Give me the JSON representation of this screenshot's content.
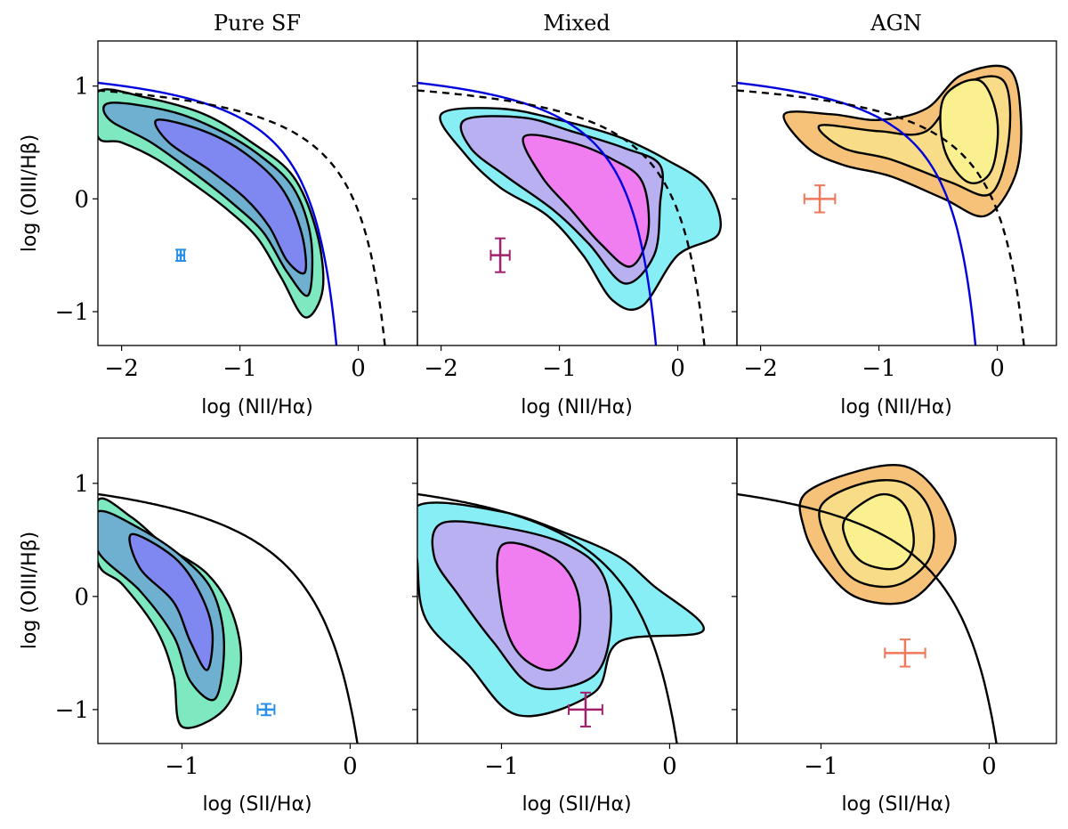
{
  "column_titles": [
    "Pure SF",
    "Mixed",
    "AGN"
  ],
  "ylabel": "log (OIII/Hβ)",
  "xlabel_top": "log (NII/Hα)",
  "xlabel_bottom": "log (SII/Hα)",
  "colors": {
    "sf_outer": "#7ee8c0",
    "sf_mid": "#6fb0d0",
    "sf_inner": "#7e88f0",
    "mix_outer": "#88eef6",
    "mix_mid": "#b8b0f0",
    "mix_inner": "#f07ef0",
    "agn_outer": "#f6c27a",
    "agn_mid": "#f8dc88",
    "agn_inner": "#fbf090",
    "kauffmann": "#0000dd",
    "kewley": "#000000",
    "err_sf": "#2a8fe8",
    "err_mix": "#a0206a",
    "err_agn": "#f0785a"
  },
  "chart_data": [
    {
      "type": "scatter",
      "panel": "top-left",
      "title": "Pure SF",
      "xlabel": "log (NII/Hα)",
      "ylabel": "log (OIII/Hβ)",
      "xlim": [
        -2.2,
        0.5
      ],
      "ylim": [
        -1.3,
        1.4
      ],
      "xticks": [
        -2,
        -1,
        0
      ],
      "xtick_labels": [
        "−2",
        "−1",
        "0"
      ],
      "yticks": [
        -1,
        0,
        1
      ],
      "ytick_labels": [
        "−1",
        "0",
        "1"
      ],
      "errorbar": {
        "x": -1.5,
        "y": -0.5,
        "xerr": 0.03,
        "yerr": 0.05,
        "color": "err_sf"
      },
      "palette": "sf",
      "density_ridge": [
        [
          -2.2,
          0.85
        ],
        [
          -1.6,
          0.6
        ],
        [
          -1.1,
          0.35
        ],
        [
          -0.75,
          0.05
        ],
        [
          -0.55,
          -0.4
        ],
        [
          -0.45,
          -0.8
        ]
      ],
      "lines": [
        "kauffmann03",
        "kewley01"
      ]
    },
    {
      "type": "scatter",
      "panel": "top-middle",
      "title": "Mixed",
      "xlabel": "log (NII/Hα)",
      "ylabel": "",
      "xlim": [
        -2.2,
        0.5
      ],
      "ylim": [
        -1.3,
        1.4
      ],
      "xticks": [
        -2,
        -1,
        0
      ],
      "xtick_labels": [
        "−2",
        "−1",
        "0"
      ],
      "yticks": [
        -1,
        0,
        1
      ],
      "ytick_labels": [],
      "errorbar": {
        "x": -1.5,
        "y": -0.5,
        "xerr": 0.08,
        "yerr": 0.15,
        "color": "err_mix"
      },
      "palette": "mix",
      "density_ridge": [
        [
          -1.9,
          0.7
        ],
        [
          -1.3,
          0.45
        ],
        [
          -0.9,
          0.15
        ],
        [
          -0.6,
          -0.2
        ],
        [
          -0.5,
          -0.6
        ]
      ],
      "lines": [
        "kauffmann03",
        "kewley01"
      ]
    },
    {
      "type": "scatter",
      "panel": "top-right",
      "title": "AGN",
      "xlabel": "log (NII/Hα)",
      "ylabel": "",
      "xlim": [
        -2.2,
        0.5
      ],
      "ylim": [
        -1.3,
        1.4
      ],
      "xticks": [
        -2,
        -1,
        0
      ],
      "xtick_labels": [
        "−2",
        "−1",
        "0"
      ],
      "yticks": [
        -1,
        0,
        1
      ],
      "ytick_labels": [],
      "errorbar": {
        "x": -1.5,
        "y": 0.0,
        "xerr": 0.13,
        "yerr": 0.12,
        "color": "err_agn"
      },
      "palette": "agn",
      "density_ridge": [
        [
          -1.6,
          0.6
        ],
        [
          -1.0,
          0.5
        ],
        [
          -0.5,
          0.4
        ],
        [
          -0.2,
          0.6
        ],
        [
          -0.1,
          0.9
        ]
      ],
      "lines": [
        "kauffmann03",
        "kewley01"
      ]
    },
    {
      "type": "scatter",
      "panel": "bottom-left",
      "title": "",
      "xlabel": "log (SII/Hα)",
      "ylabel": "log (OIII/Hβ)",
      "xlim": [
        -1.5,
        0.4
      ],
      "ylim": [
        -1.3,
        1.4
      ],
      "xticks": [
        -1,
        0
      ],
      "xtick_labels": [
        "−1",
        "0"
      ],
      "yticks": [
        -1,
        0,
        1
      ],
      "ytick_labels": [
        "−1",
        "0",
        "1"
      ],
      "errorbar": {
        "x": -0.5,
        "y": -1.0,
        "xerr": 0.05,
        "yerr": 0.05,
        "color": "err_sf"
      },
      "palette": "sf",
      "density_ridge": [
        [
          -1.5,
          0.7
        ],
        [
          -1.2,
          0.45
        ],
        [
          -0.95,
          0.1
        ],
        [
          -0.85,
          -0.3
        ],
        [
          -0.85,
          -0.7
        ]
      ],
      "lines": [
        "kewley01_sii"
      ]
    },
    {
      "type": "scatter",
      "panel": "bottom-middle",
      "title": "",
      "xlabel": "log (SII/Hα)",
      "ylabel": "",
      "xlim": [
        -1.5,
        0.4
      ],
      "ylim": [
        -1.3,
        1.4
      ],
      "xticks": [
        -1,
        0
      ],
      "xtick_labels": [
        "−1",
        "0"
      ],
      "yticks": [
        -1,
        0,
        1
      ],
      "ytick_labels": [],
      "errorbar": {
        "x": -0.5,
        "y": -1.0,
        "xerr": 0.1,
        "yerr": 0.15,
        "color": "err_mix"
      },
      "palette": "mix",
      "density_ridge": [
        [
          -1.4,
          0.7
        ],
        [
          -1.0,
          0.45
        ],
        [
          -0.8,
          0.1
        ],
        [
          -0.75,
          -0.3
        ],
        [
          -0.75,
          -0.6
        ]
      ],
      "lines": [
        "kewley01_sii"
      ]
    },
    {
      "type": "scatter",
      "panel": "bottom-right",
      "title": "",
      "xlabel": "log (SII/Hα)",
      "ylabel": "",
      "xlim": [
        -1.5,
        0.4
      ],
      "ylim": [
        -1.3,
        1.4
      ],
      "xticks": [
        -1,
        0
      ],
      "xtick_labels": [
        "−1",
        "0"
      ],
      "yticks": [
        -1,
        0,
        1
      ],
      "ytick_labels": [],
      "errorbar": {
        "x": -0.5,
        "y": -0.5,
        "xerr": 0.12,
        "yerr": 0.12,
        "color": "err_agn"
      },
      "palette": "agn",
      "density_ridge": [
        [
          -1.0,
          0.5
        ],
        [
          -0.8,
          0.7
        ],
        [
          -0.6,
          0.8
        ],
        [
          -0.55,
          0.4
        ],
        [
          -0.7,
          0.2
        ]
      ],
      "lines": [
        "kewley01_sii"
      ]
    }
  ]
}
